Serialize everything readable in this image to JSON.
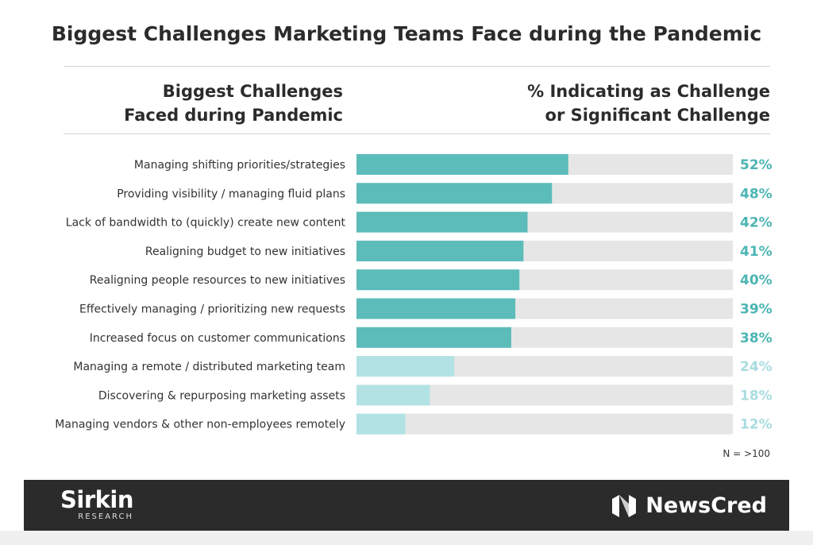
{
  "title": "Biggest Challenges Marketing Teams Face during the Pandemic",
  "header": {
    "left_line1": "Biggest Challenges",
    "left_line2": "Faced during Pandemic",
    "right_line1": "% Indicating as Challenge",
    "right_line2": "or Significant Challenge"
  },
  "note": "N = >100",
  "colors": {
    "primary": "#5bbcba",
    "light": "#b2e2e4",
    "track": "#e6e6e6",
    "primary_text": "#4cb5b3",
    "light_text": "#a9dcdf"
  },
  "chart_data": {
    "type": "bar",
    "orientation": "horizontal",
    "xlim": [
      0,
      100
    ],
    "categories": [
      "Managing shifting priorities/strategies",
      "Providing visibility / managing fluid plans",
      "Lack of bandwidth to (quickly) create new content",
      "Realigning budget to new initiatives",
      "Realigning people resources to new initiatives",
      "Effectively managing / prioritizing new requests",
      "Increased focus on customer communications",
      "Managing a remote / distributed marketing team",
      "Discovering & repurposing marketing assets",
      "Managing vendors & other non-employees remotely"
    ],
    "values": [
      52,
      48,
      42,
      41,
      40,
      39,
      38,
      24,
      18,
      12
    ],
    "value_labels": [
      "52%",
      "48%",
      "42%",
      "41%",
      "40%",
      "39%",
      "38%",
      "24%",
      "18%",
      "12%"
    ],
    "highlight": [
      true,
      true,
      true,
      true,
      true,
      true,
      true,
      false,
      false,
      false
    ]
  },
  "footer": {
    "left_logo": "Sirkin",
    "left_sub": "RESEARCH",
    "right_logo": "NewsCred",
    "right_icon": "newscred-logo-icon"
  }
}
